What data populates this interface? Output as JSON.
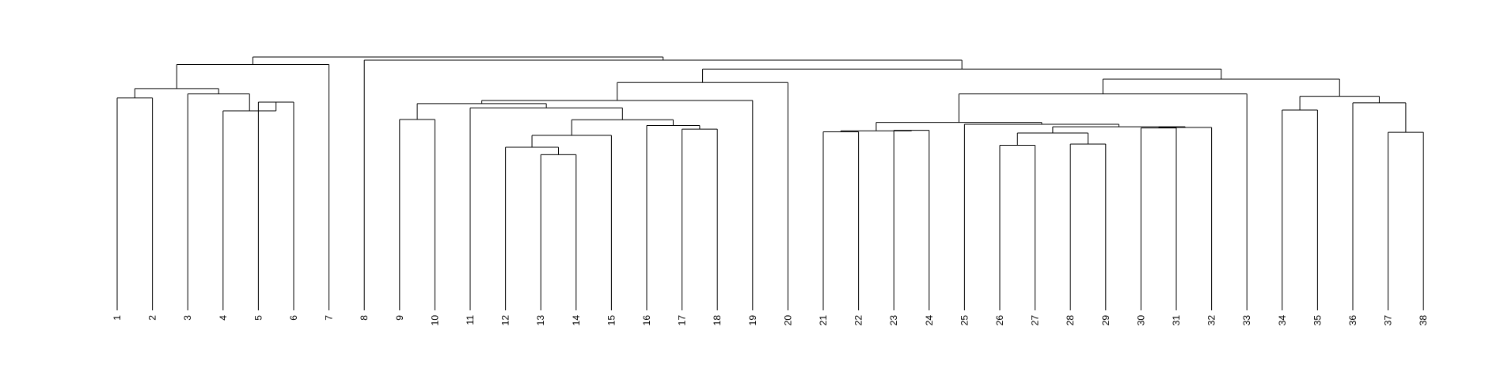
{
  "chart_data": {
    "type": "dendrogram",
    "title": "",
    "xlabel": "",
    "ylabel": "",
    "leaves": [
      "1",
      "2",
      "3",
      "4",
      "5",
      "6",
      "7",
      "8",
      "9",
      "10",
      "11",
      "12",
      "13",
      "14",
      "15",
      "16",
      "17",
      "18",
      "19",
      "20",
      "21",
      "22",
      "23",
      "24",
      "25",
      "26",
      "27",
      "28",
      "29",
      "30",
      "31",
      "32",
      "33",
      "34",
      "35",
      "36",
      "37",
      "38"
    ],
    "merges": [
      {
        "a": "L1",
        "b": "L2",
        "height": 0.88
      },
      {
        "a": "L5",
        "b": "L6",
        "height": 0.863
      },
      {
        "a": "L4",
        "b": "N2",
        "height": 0.827
      },
      {
        "a": "L3",
        "b": "N3",
        "height": 0.897
      },
      {
        "a": "N1",
        "b": "N4",
        "height": 0.919
      },
      {
        "a": "N5",
        "b": "L7",
        "height": 1.019
      },
      {
        "a": "L9",
        "b": "L10",
        "height": 0.791
      },
      {
        "a": "L13",
        "b": "L14",
        "height": 0.645
      },
      {
        "a": "L12",
        "b": "N8",
        "height": 0.676
      },
      {
        "a": "N9",
        "b": "L15",
        "height": 0.725
      },
      {
        "a": "L17",
        "b": "L18",
        "height": 0.751
      },
      {
        "a": "L16",
        "b": "N11",
        "height": 0.766
      },
      {
        "a": "N10",
        "b": "N12",
        "height": 0.79
      },
      {
        "a": "L11",
        "b": "N13",
        "height": 0.839
      },
      {
        "a": "N7",
        "b": "N14",
        "height": 0.857
      },
      {
        "a": "N15",
        "b": "L19",
        "height": 0.87
      },
      {
        "a": "N16",
        "b": "L20",
        "height": 0.944
      },
      {
        "a": "L21",
        "b": "L22",
        "height": 0.74
      },
      {
        "a": "L23",
        "b": "L24",
        "height": 0.746
      },
      {
        "a": "N18",
        "b": "N19",
        "height": 0.744
      },
      {
        "a": "L26",
        "b": "L27",
        "height": 0.684
      },
      {
        "a": "L28",
        "b": "L29",
        "height": 0.689
      },
      {
        "a": "N21",
        "b": "N22",
        "height": 0.735
      },
      {
        "a": "L30",
        "b": "L31",
        "height": 0.756
      },
      {
        "a": "N24",
        "b": "L32",
        "height": 0.758
      },
      {
        "a": "N23",
        "b": "N25",
        "height": 0.761
      },
      {
        "a": "L25",
        "b": "N26",
        "height": 0.771
      },
      {
        "a": "N20",
        "b": "N27",
        "height": 0.779
      },
      {
        "a": "N28",
        "b": "L33",
        "height": 0.897
      },
      {
        "a": "L34",
        "b": "L35",
        "height": 0.83
      },
      {
        "a": "L37",
        "b": "L38",
        "height": 0.738
      },
      {
        "a": "L36",
        "b": "N31",
        "height": 0.86
      },
      {
        "a": "N30",
        "b": "N32",
        "height": 0.887
      },
      {
        "a": "N29",
        "b": "N33",
        "height": 0.958
      },
      {
        "a": "N17",
        "b": "N34",
        "height": 1.0
      },
      {
        "a": "L8",
        "b": "N35",
        "height": 1.037
      },
      {
        "a": "N6",
        "b": "N36",
        "height": 1.05
      }
    ],
    "ylim": [
      0,
      1.05
    ],
    "grid": false,
    "legend": "none",
    "line_color": "#000000"
  }
}
